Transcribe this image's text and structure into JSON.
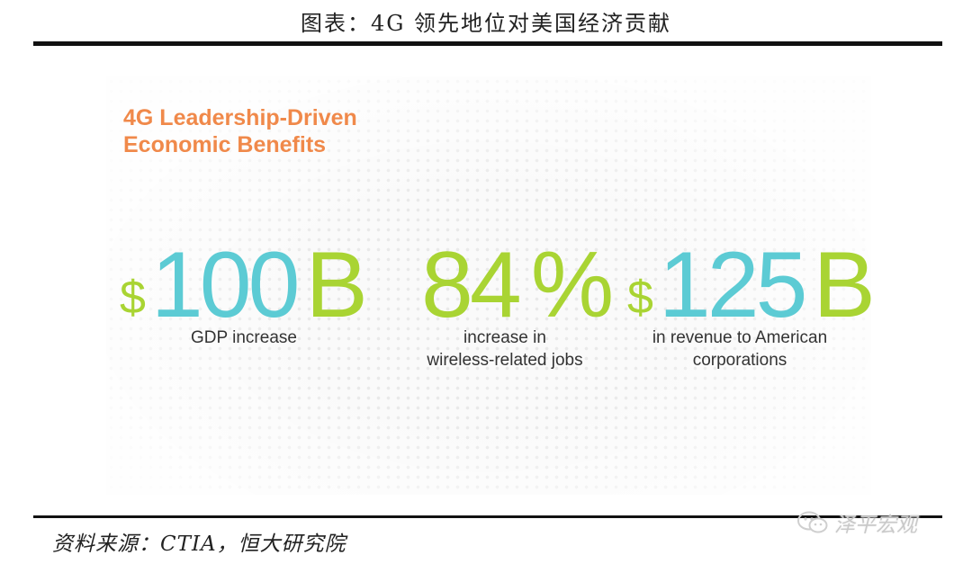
{
  "figure_title": "图表：4G 领先地位对美国经济贡献",
  "panel": {
    "heading_line1": "4G Leadership-Driven",
    "heading_line2": "Economic Benefits",
    "stats": [
      {
        "currency": "$",
        "value": "100",
        "unit": "B",
        "caption_line1": "GDP increase",
        "caption_line2": ""
      },
      {
        "currency": "",
        "value": "84",
        "unit": "%",
        "caption_line1": "increase in",
        "caption_line2": "wireless-related jobs"
      },
      {
        "currency": "$",
        "value": "125",
        "unit": "B",
        "caption_line1": "in revenue to American",
        "caption_line2": "corporations"
      }
    ]
  },
  "source": "资料来源：CTIA，恒大研究院",
  "watermark": "泽平宏观",
  "colors": {
    "accent_orange": "#f0894a",
    "green": "#a9d433",
    "teal": "#5ccbd4",
    "blue": "#3fb8e2"
  }
}
